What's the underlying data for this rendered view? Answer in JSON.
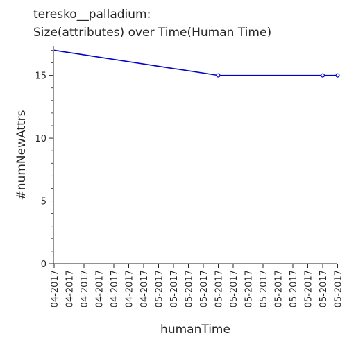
{
  "chart_data": {
    "type": "line",
    "title_line1": "teresko__palladium:",
    "title_line2": "Size(attributes) over Time(Human Time)",
    "xlabel": "humanTime",
    "ylabel": "#numNewAttrs",
    "categories": [
      "04-2017",
      "04-2017",
      "04-2017",
      "04-2017",
      "04-2017",
      "04-2017",
      "04-2017",
      "05-2017",
      "05-2017",
      "05-2017",
      "05-2017",
      "05-2017",
      "05-2017",
      "05-2017",
      "05-2017",
      "05-2017",
      "05-2017",
      "05-2017",
      "05-2017",
      "05-2017"
    ],
    "ylim": [
      0,
      17.3
    ],
    "yticks": [
      0,
      5,
      10,
      15
    ],
    "series": [
      {
        "x": [
          0,
          11,
          18,
          19
        ],
        "values": [
          17,
          15,
          15,
          15
        ],
        "marker_start": 1
      }
    ],
    "colors": {
      "line": "#0000cc",
      "axis": "#262626"
    },
    "grid": false,
    "legend": "none"
  }
}
